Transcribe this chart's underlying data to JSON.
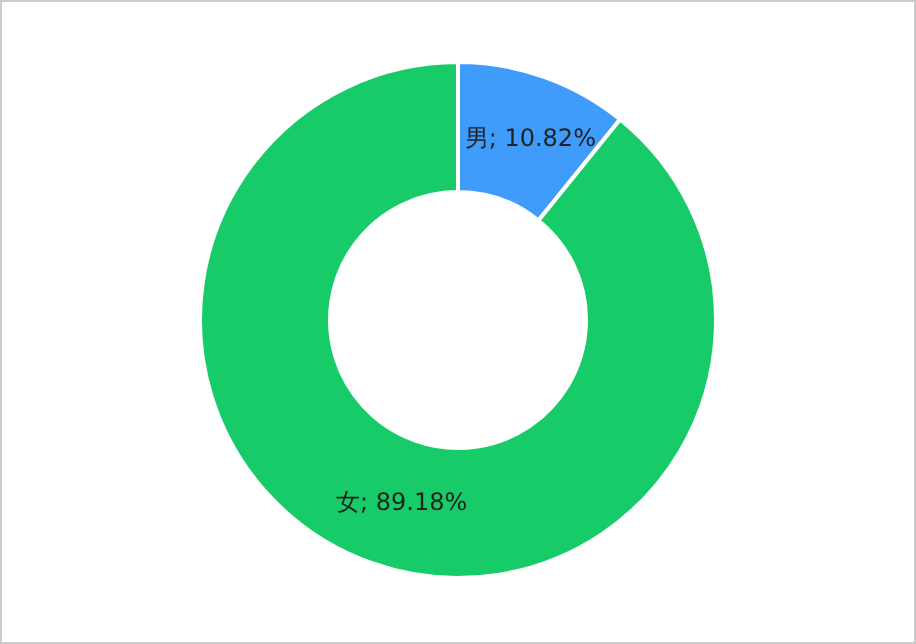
{
  "chart_data": {
    "type": "donut",
    "categories": [
      "男",
      "女"
    ],
    "values": [
      10.82,
      89.18
    ],
    "colors": [
      "#3f9cfb",
      "#17cc68"
    ],
    "value_labels": [
      "; 10.82%",
      "; 89.18%"
    ],
    "legend": false
  }
}
